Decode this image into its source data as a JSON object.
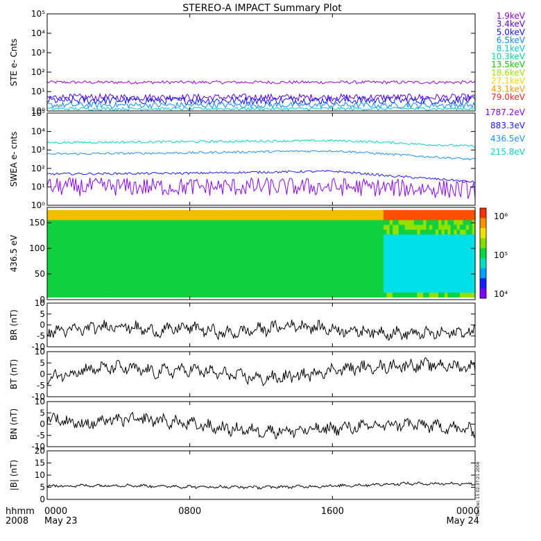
{
  "title": "STEREO-A IMPACT Summary Plot",
  "stamp": "Tue Dec 15 02:37:21 2008",
  "time_axis": {
    "label_top": "hhmm",
    "label_bottom": "2008",
    "ticks": [
      {
        "t": 0,
        "top": "0000",
        "bottom": "May 23"
      },
      {
        "t": 8,
        "top": "0800",
        "bottom": ""
      },
      {
        "t": 16,
        "top": "1600",
        "bottom": ""
      },
      {
        "t": 24,
        "top": "0000",
        "bottom": "May 24"
      }
    ],
    "range_hours": [
      0,
      24
    ]
  },
  "colors": {
    "ste": {
      "1.9keV": "#9400d3",
      "3.4keV": "#5a00e0",
      "5.0keV": "#1010ff",
      "6.5keV": "#0a8cff",
      "8.1keV": "#00c8d2",
      "10.3keV": "#00d890",
      "13.5keV": "#10c800",
      "18.6keV": "#a0e000",
      "27.1keV": "#e8d800",
      "43.1keV": "#ff9a00",
      "79.0keV": "#ff2020"
    },
    "swea": {
      "1787.2eV": "#8a00ff",
      "883.3eV": "#1a1aff",
      "436.5eV": "#1e90ff",
      "215.8eV": "#00d4c0"
    }
  },
  "chart_data": [
    {
      "type": "line",
      "panel": "ste",
      "ylabel": "STE e- Cnts",
      "yscale": "log",
      "ylim": [
        1,
        100000
      ],
      "yticks": [
        "10⁰",
        "10¹",
        "10²",
        "10³",
        "10⁴",
        "10⁵"
      ],
      "legend": [
        "1.9keV",
        "3.4keV",
        "5.0keV",
        "6.5keV",
        "8.1keV",
        "10.3keV",
        "13.5keV",
        "18.6keV",
        "27.1keV",
        "43.1keV",
        "79.0keV"
      ],
      "legend_placement": "right",
      "series": [
        {
          "name": "1.9keV",
          "level": 30,
          "jitter": 0.08
        },
        {
          "name": "3.4keV",
          "level": 5,
          "jitter": 0.18
        },
        {
          "name": "5.0keV",
          "level": 3.5,
          "jitter": 0.2
        },
        {
          "name": "6.5keV",
          "level": 2,
          "jitter": 0.15
        },
        {
          "name": "8.1keV",
          "level": 1.3,
          "jitter": 0.08
        }
      ]
    },
    {
      "type": "line",
      "panel": "swea",
      "ylabel": "SWEA e- cnts",
      "yscale": "log",
      "ylim": [
        1,
        100000
      ],
      "yticks": [
        "10⁰",
        "10¹",
        "10²",
        "10³",
        "10⁴",
        "10⁵"
      ],
      "legend": [
        "1787.2eV",
        "883.3eV",
        "436.5eV",
        "215.8eV"
      ],
      "legend_placement": "right",
      "series": [
        {
          "name": "215.8eV",
          "x": [
            0,
            8,
            16,
            19,
            21,
            24
          ],
          "y": [
            2500,
            2800,
            3200,
            2600,
            2000,
            1600
          ]
        },
        {
          "name": "436.5eV",
          "x": [
            0,
            8,
            16,
            19,
            21,
            24
          ],
          "y": [
            600,
            700,
            900,
            600,
            450,
            300
          ]
        },
        {
          "name": "883.3eV",
          "x": [
            0,
            8,
            16,
            19,
            21,
            24
          ],
          "y": [
            50,
            55,
            70,
            40,
            30,
            18
          ]
        },
        {
          "name": "1787.2eV",
          "x": [
            0,
            8,
            16,
            19,
            21,
            24
          ],
          "y": [
            10,
            10,
            10,
            9,
            8,
            7
          ],
          "jitter": 0.5
        }
      ]
    },
    {
      "type": "heatmap",
      "panel": "pad",
      "ylabel": "436.5 eV",
      "ylim": [
        0,
        180
      ],
      "yticks": [
        0,
        50,
        100,
        150
      ],
      "colorbar": {
        "scale": "log",
        "range": [
          10000,
          1000000
        ],
        "ticks": [
          "10⁴",
          "10⁵",
          "10⁶"
        ]
      },
      "note": "pitch angle distribution; higher flux near 180 after 1800"
    },
    {
      "type": "line",
      "panel": "br",
      "ylabel": "BR (nT)",
      "ylim": [
        -10,
        10
      ],
      "yticks": [
        -10,
        -5,
        0,
        5,
        10
      ],
      "x": [
        0,
        2,
        4,
        6,
        8,
        10,
        12,
        14,
        16,
        18,
        20,
        22,
        24
      ],
      "y": [
        -3,
        -2,
        0,
        -3,
        -1,
        -4,
        -2,
        0,
        -2,
        -3,
        -4,
        -4,
        -3
      ]
    },
    {
      "type": "line",
      "panel": "bt",
      "ylabel": "BT (nT)",
      "ylim": [
        -10,
        10
      ],
      "yticks": [
        -10,
        -5,
        0,
        5,
        10
      ],
      "x": [
        0,
        2,
        4,
        6,
        8,
        10,
        12,
        14,
        16,
        18,
        20,
        22,
        24
      ],
      "y": [
        -2,
        2,
        3,
        1,
        2,
        0,
        -2,
        -1,
        2,
        3,
        4,
        4,
        3
      ]
    },
    {
      "type": "line",
      "panel": "bn",
      "ylabel": "BN (nT)",
      "ylim": [
        -10,
        10
      ],
      "yticks": [
        -10,
        -5,
        0,
        5,
        10
      ],
      "x": [
        0,
        2,
        4,
        6,
        8,
        10,
        12,
        14,
        16,
        18,
        20,
        22,
        24
      ],
      "y": [
        3,
        0,
        2,
        2,
        0,
        -2,
        -3,
        -3,
        -2,
        -1,
        0,
        -1,
        -3
      ]
    },
    {
      "type": "line",
      "panel": "bmag",
      "ylabel": "|B| (nT)",
      "ylim": [
        0,
        20
      ],
      "yticks": [
        0,
        5,
        10,
        15,
        20
      ],
      "x": [
        0,
        4,
        8,
        12,
        16,
        20,
        24
      ],
      "y": [
        5.5,
        5.8,
        5.2,
        5.0,
        5.5,
        6.5,
        6.5
      ]
    }
  ]
}
